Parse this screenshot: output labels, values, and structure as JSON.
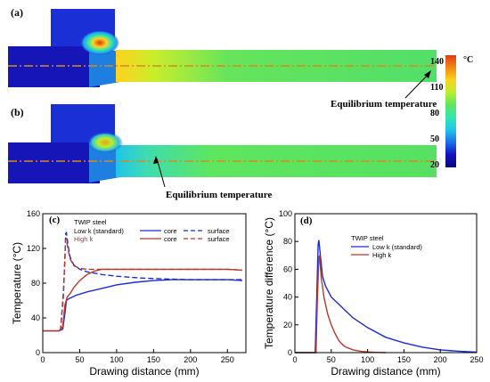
{
  "panels": {
    "a": {
      "label": "(a)",
      "annotation": "Equilibrium temperature"
    },
    "b": {
      "label": "(b)",
      "annotation": "Equilibrium temperature"
    }
  },
  "colorbar": {
    "unit": "°C",
    "ticks": [
      140,
      110,
      80,
      50,
      20
    ],
    "colors": [
      "#e23a16",
      "#f08a12",
      "#ffd21e",
      "#b8ef2c",
      "#5ee65e",
      "#31e7b0",
      "#1fc4ea",
      "#1a6fe8",
      "#1410c2",
      "#0a0a78"
    ]
  },
  "field_colors": {
    "die": "#1a2fd6",
    "billet": "#1515b8",
    "drawn_wire": "#57e063",
    "hot_core": "#d9331a",
    "centerline": "#d68a1c"
  },
  "chart_data": [
    {
      "id": "c",
      "type": "line",
      "panel_label": "(c)",
      "legend": {
        "header": "TWIP steel",
        "rows": [
          {
            "name": "Low k (standard)",
            "color": "#1c2bd8"
          },
          {
            "name": "High k",
            "color": "#b8372a"
          }
        ],
        "style_labels": [
          "core",
          "surface"
        ],
        "placement": "top-left"
      },
      "xlabel": "Drawing distance (mm)",
      "ylabel": "Temperature (°C)",
      "xlim": [
        0,
        275
      ],
      "ylim": [
        0,
        160
      ],
      "xticks": [
        0,
        50,
        100,
        150,
        200,
        250
      ],
      "yticks": [
        0,
        40,
        80,
        120,
        160
      ],
      "series": [
        {
          "name": "Low k core",
          "color": "#1c2bd8",
          "dash": false,
          "x": [
            0,
            22,
            27,
            30,
            32,
            35,
            45,
            60,
            80,
            100,
            125,
            150,
            175,
            200,
            225,
            250,
            270
          ],
          "y": [
            25,
            25,
            27,
            45,
            60,
            62,
            66,
            70,
            74,
            78,
            81,
            83,
            84,
            84,
            84,
            84,
            83
          ]
        },
        {
          "name": "Low k surface",
          "color": "#1c2bd8",
          "dash": true,
          "x": [
            24,
            28,
            30,
            31,
            32,
            34,
            37,
            42,
            50,
            60,
            80,
            100,
            130,
            160,
            200,
            240,
            270
          ],
          "y": [
            25,
            70,
            110,
            137,
            138,
            125,
            110,
            101,
            96,
            93,
            90,
            88,
            86,
            85,
            84,
            84,
            84
          ]
        },
        {
          "name": "High k core",
          "color": "#b8372a",
          "dash": false,
          "x": [
            0,
            22,
            27,
            30,
            33,
            37,
            42,
            50,
            60,
            70,
            80,
            90,
            100,
            150,
            200,
            250,
            270
          ],
          "y": [
            25,
            25,
            30,
            55,
            64,
            68,
            75,
            83,
            90,
            94,
            96,
            96,
            96,
            96,
            96,
            96,
            95
          ]
        },
        {
          "name": "High k surface",
          "color": "#b8372a",
          "dash": true,
          "x": [
            24,
            28,
            30,
            31,
            32,
            34,
            37,
            42,
            50,
            60,
            70,
            80,
            100,
            150,
            200,
            250,
            270
          ],
          "y": [
            25,
            65,
            110,
            130,
            131,
            120,
            108,
            100,
            97,
            96,
            96,
            96,
            96,
            96,
            96,
            96,
            95
          ]
        }
      ]
    },
    {
      "id": "d",
      "type": "line",
      "panel_label": "(d)",
      "legend": {
        "header": "TWIP steel",
        "rows": [
          {
            "name": "Low k (standard)",
            "color": "#1c2bd8"
          },
          {
            "name": "High k",
            "color": "#b8372a"
          }
        ],
        "placement": "top-right"
      },
      "xlabel": "Drawing distance (mm)",
      "ylabel": "Temperature difference (°C)",
      "xlim": [
        0,
        250
      ],
      "ylim": [
        0,
        100
      ],
      "xticks": [
        0,
        50,
        100,
        150,
        200,
        250
      ],
      "yticks": [
        0,
        20,
        40,
        60,
        80,
        100
      ],
      "series": [
        {
          "name": "Low k (standard)",
          "color": "#1c2bd8",
          "x": [
            0,
            28,
            30,
            32,
            33,
            35,
            38,
            42,
            50,
            60,
            70,
            80,
            100,
            125,
            150,
            175,
            200,
            225,
            250
          ],
          "y": [
            0,
            0,
            40,
            78,
            81,
            70,
            55,
            48,
            40,
            35,
            30,
            25,
            18,
            11,
            7,
            4,
            2,
            1,
            0.3
          ]
        },
        {
          "name": "High k",
          "color": "#b8372a",
          "x": [
            0,
            29,
            31,
            33,
            34,
            36,
            40,
            45,
            50,
            55,
            60,
            65,
            70,
            80,
            90,
            100,
            110,
            125
          ],
          "y": [
            0,
            0,
            40,
            68,
            70,
            55,
            40,
            28,
            20,
            14,
            9,
            6,
            4,
            2,
            1,
            0.5,
            0.2,
            0
          ]
        }
      ]
    }
  ]
}
